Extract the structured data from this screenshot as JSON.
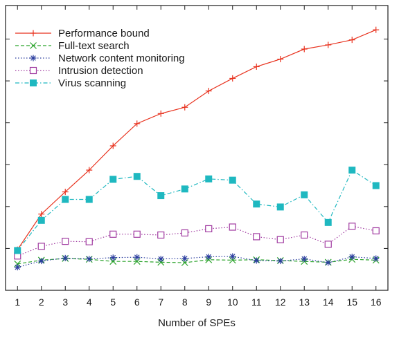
{
  "chart_data": {
    "type": "line",
    "title": "",
    "xlabel": "Number of SPEs",
    "ylabel": "",
    "x": [
      1,
      2,
      3,
      4,
      5,
      6,
      7,
      8,
      9,
      10,
      11,
      12,
      13,
      14,
      15,
      16
    ],
    "xlim": [
      0.5,
      16.5
    ],
    "ylim": [
      0,
      6.8
    ],
    "y_ticks": [
      1,
      2,
      3,
      4,
      5,
      6
    ],
    "y_tick_labels_visible": false,
    "grid": false,
    "legend_position": "top-left",
    "series": [
      {
        "name": "Performance bound",
        "color": "#e8321e",
        "marker": "plus",
        "line_style": "solid",
        "values": [
          0.97,
          1.82,
          2.35,
          2.87,
          3.45,
          3.98,
          4.22,
          4.37,
          4.76,
          5.06,
          5.34,
          5.52,
          5.76,
          5.86,
          5.98,
          6.22
        ]
      },
      {
        "name": "Full-text search",
        "color": "#2aa32a",
        "marker": "x",
        "line_style": "dashed",
        "values": [
          0.63,
          0.72,
          0.76,
          0.74,
          0.69,
          0.69,
          0.67,
          0.66,
          0.73,
          0.72,
          0.73,
          0.71,
          0.69,
          0.67,
          0.74,
          0.72
        ]
      },
      {
        "name": "Network content monitoring",
        "color": "#2a3d9e",
        "marker": "asterisk",
        "line_style": "dotted",
        "values": [
          0.55,
          0.7,
          0.77,
          0.75,
          0.78,
          0.79,
          0.75,
          0.76,
          0.8,
          0.81,
          0.71,
          0.7,
          0.75,
          0.66,
          0.8,
          0.76
        ]
      },
      {
        "name": "Intrusion detection",
        "color": "#a03aa0",
        "marker": "open-square",
        "line_style": "dotted",
        "values": [
          0.82,
          1.05,
          1.17,
          1.16,
          1.34,
          1.34,
          1.32,
          1.37,
          1.47,
          1.51,
          1.28,
          1.21,
          1.32,
          1.1,
          1.53,
          1.42
        ]
      },
      {
        "name": "Virus scanning",
        "color": "#1fb8c0",
        "marker": "filled-square",
        "line_style": "dashdot",
        "values": [
          0.95,
          1.67,
          2.17,
          2.17,
          2.65,
          2.72,
          2.26,
          2.42,
          2.66,
          2.63,
          2.06,
          1.99,
          2.28,
          1.62,
          2.87,
          2.5
        ]
      }
    ]
  }
}
